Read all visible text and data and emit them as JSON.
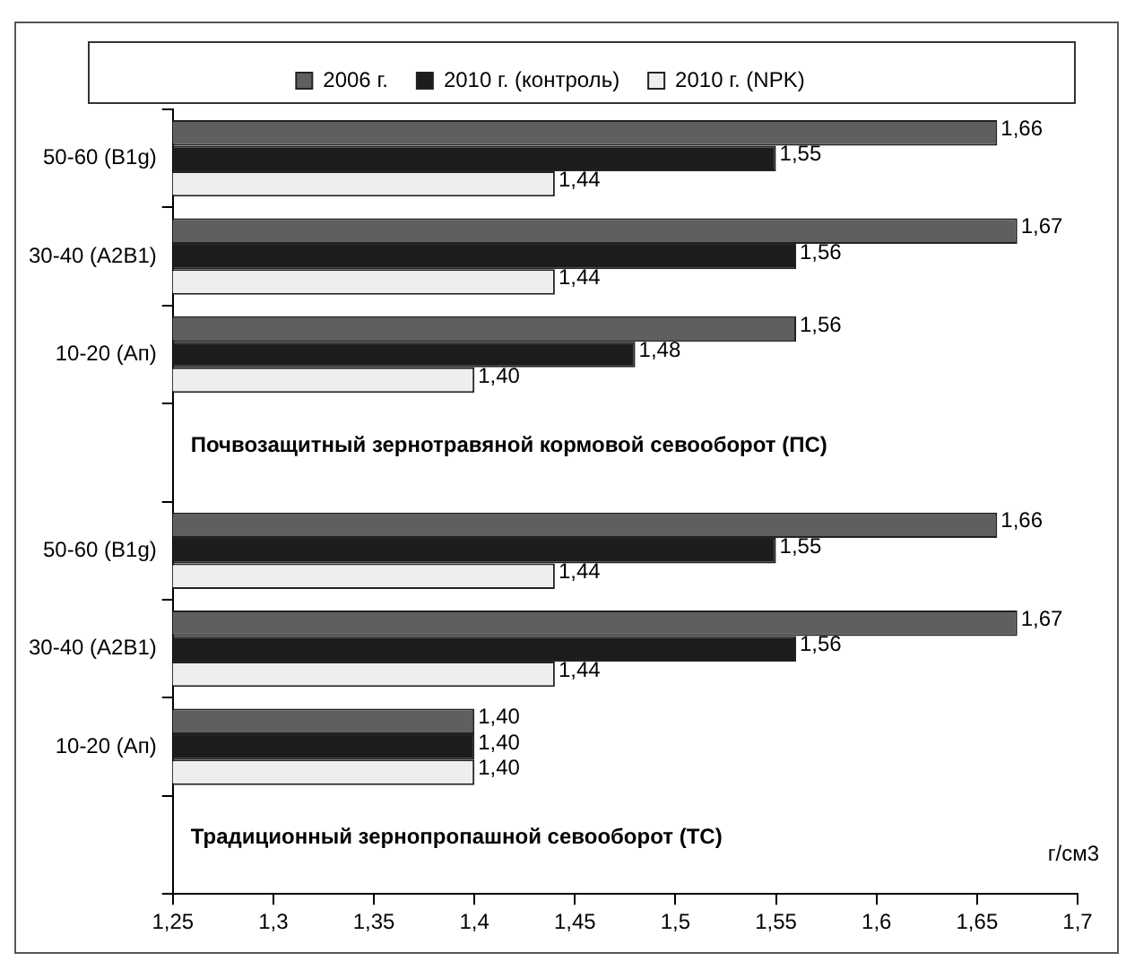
{
  "chart_data": {
    "type": "bar",
    "orientation": "horizontal",
    "xlabel": "г/см3",
    "categories": [
      "50-60 (B1g)",
      "30-40 (A2B1)",
      "10-20 (Ап)",
      null,
      "50-60 (B1g)",
      "30-40 (A2B1)",
      "10-20 (Ап)",
      null
    ],
    "series": [
      {
        "name": "2006 г.",
        "color": "#5f5f5f",
        "values": [
          1.66,
          1.67,
          1.56,
          null,
          1.66,
          1.67,
          1.4,
          null
        ],
        "value_labels": [
          "1,66",
          "1,67",
          "1,56",
          null,
          "1,66",
          "1,67",
          "1,40",
          null
        ]
      },
      {
        "name": "2010 г. (контроль)",
        "color": "#1c1c1c",
        "values": [
          1.55,
          1.56,
          1.48,
          null,
          1.55,
          1.56,
          1.4,
          null
        ],
        "value_labels": [
          "1,55",
          "1,56",
          "1,48",
          null,
          "1,55",
          "1,56",
          "1,40",
          null
        ]
      },
      {
        "name": "2010 г. (NPK)",
        "color": "#eeeeee",
        "values": [
          1.44,
          1.44,
          1.4,
          null,
          1.44,
          1.44,
          1.4,
          null
        ],
        "value_labels": [
          "1,44",
          "1,44",
          "1,40",
          null,
          "1,44",
          "1,44",
          "1,40",
          null
        ]
      }
    ],
    "xlim": [
      1.25,
      1.7
    ],
    "xticks": [
      {
        "value": 1.25,
        "label": "1,25"
      },
      {
        "value": 1.3,
        "label": "1,3"
      },
      {
        "value": 1.35,
        "label": "1,35"
      },
      {
        "value": 1.4,
        "label": "1,4"
      },
      {
        "value": 1.45,
        "label": "1,45"
      },
      {
        "value": 1.5,
        "label": "1,5"
      },
      {
        "value": 1.55,
        "label": "1,55"
      },
      {
        "value": 1.6,
        "label": "1,6"
      },
      {
        "value": 1.65,
        "label": "1,65"
      },
      {
        "value": 1.7,
        "label": "1,7"
      }
    ],
    "annotations": [
      "Почвозащитный зернотравяной кормовой севооборот (ПС)",
      "Традиционный зернопропашной севооборот (ТС)"
    ],
    "legend": "top",
    "grid": false
  }
}
